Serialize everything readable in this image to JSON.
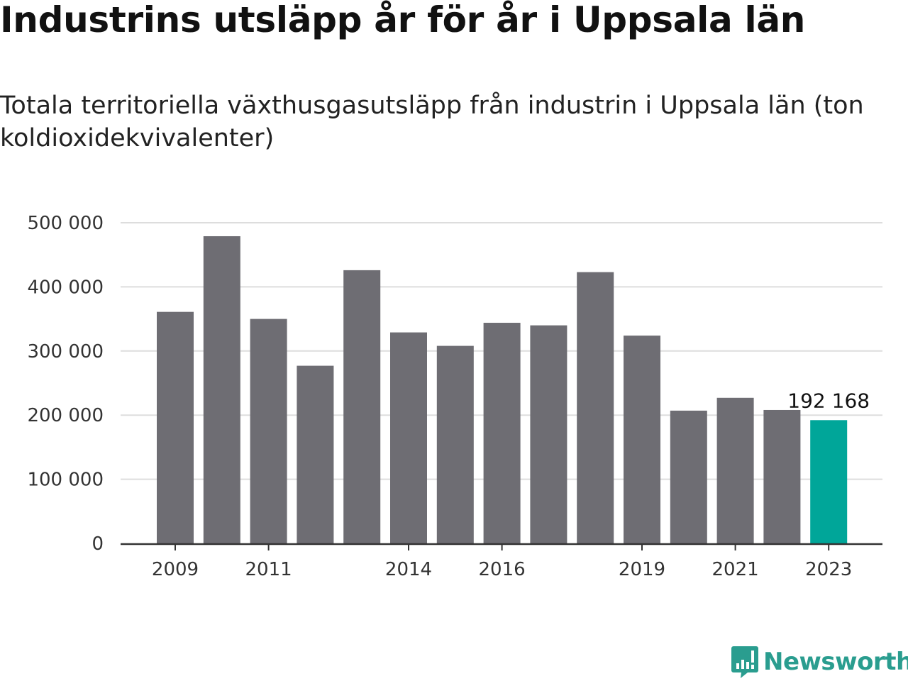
{
  "title": "Industrins utsläpp år för år i Uppsala län",
  "subtitle": "Totala territoriella växthusgasutsläpp från industrin i Uppsala län (ton koldioxidekvivalenter)",
  "logo": {
    "text": "Newsworthy",
    "icon": "bar-chart-speech-bubble-icon",
    "color": "#2a9d8f"
  },
  "colors": {
    "bar": "#6e6d73",
    "highlight": "#00a699",
    "grid": "#dddddd",
    "axis": "#333333"
  },
  "chart_data": {
    "type": "bar",
    "title": "Industrins utsläpp år för år i Uppsala län",
    "subtitle": "Totala territoriella växthusgasutsläpp från industrin i Uppsala län (ton koldioxidekvivalenter)",
    "xlabel": "",
    "ylabel": "",
    "categories": [
      "2009",
      "2010",
      "2011",
      "2012",
      "2013",
      "2014",
      "2015",
      "2016",
      "2017",
      "2018",
      "2019",
      "2020",
      "2021",
      "2022",
      "2023"
    ],
    "values": [
      361000,
      479000,
      350000,
      277000,
      426000,
      329000,
      308000,
      344000,
      340000,
      423000,
      324000,
      207000,
      227000,
      208000,
      192168
    ],
    "ylim": [
      0,
      500000
    ],
    "yticks": [
      0,
      100000,
      200000,
      300000,
      400000,
      500000
    ],
    "ytick_labels": [
      "0",
      "100 000",
      "200 000",
      "300 000",
      "400 000",
      "500 000"
    ],
    "xtick_labels": [
      "2009",
      "2011",
      "2014",
      "2016",
      "2019",
      "2021",
      "2023"
    ],
    "highlight_index": 14,
    "annotation": {
      "category": "2023",
      "text": "192 168"
    },
    "grid": true,
    "legend": "none"
  }
}
